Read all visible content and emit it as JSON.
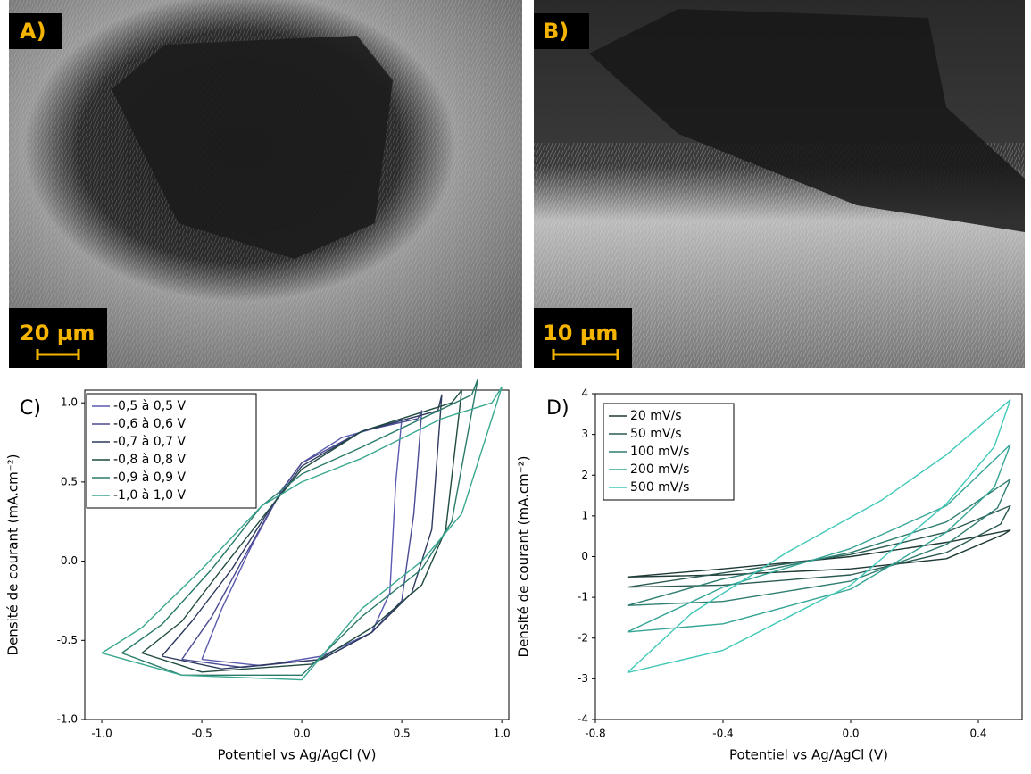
{
  "images": [
    {
      "label": "A)",
      "scale_bar": "20 µm"
    },
    {
      "label": "B)",
      "scale_bar": "10 µm"
    }
  ],
  "chart_data": [
    {
      "type": "line",
      "panel_label": "C)",
      "x_label": "Potentiel vs Ag/AgCl (V)",
      "y_label": "Densité de courant (mA.cm⁻²)",
      "xlim": [
        -1.085,
        1.035
      ],
      "ylim": [
        -1.0,
        1.08
      ],
      "xticks": [
        {
          "value": -1.0,
          "label": "-1.0"
        },
        {
          "value": -0.5,
          "label": "-0.5"
        },
        {
          "value": 0,
          "label": "0.0"
        },
        {
          "value": 0.5,
          "label": "0.5"
        },
        {
          "value": 1.0,
          "label": "1.0"
        }
      ],
      "yticks": [
        {
          "value": -1.0,
          "label": "-1.0"
        },
        {
          "value": -0.5,
          "label": "-0.5"
        },
        {
          "value": 0,
          "label": "0.0"
        },
        {
          "value": 0.5,
          "label": "0.5"
        },
        {
          "value": 1.0,
          "label": "1.0"
        }
      ],
      "series": [
        {
          "name": "-0,5 à 0,5 V",
          "color": "#5a5ab0",
          "x": [
            -0.5,
            -0.4,
            -0.25,
            -0.1,
            0,
            0.2,
            0.48,
            0.5,
            0.47,
            0.44,
            0.35,
            0.1,
            -0.2,
            -0.5
          ],
          "values": [
            -0.62,
            -0.3,
            0.1,
            0.45,
            0.62,
            0.78,
            0.88,
            0.9,
            0.5,
            -0.2,
            -0.45,
            -0.6,
            -0.66,
            -0.62
          ]
        },
        {
          "name": "-0,6 à 0,6 V",
          "color": "#4a4a92",
          "x": [
            -0.6,
            -0.45,
            -0.3,
            -0.1,
            0,
            0.3,
            0.58,
            0.6,
            0.56,
            0.5,
            0.35,
            0.1,
            -0.3,
            -0.6
          ],
          "values": [
            -0.62,
            -0.35,
            0,
            0.45,
            0.62,
            0.82,
            0.9,
            0.95,
            0.3,
            -0.25,
            -0.45,
            -0.62,
            -0.67,
            -0.62
          ]
        },
        {
          "name": "-0,7 à 0,7 V",
          "color": "#2e3a5e",
          "x": [
            -0.7,
            -0.55,
            -0.35,
            -0.15,
            0,
            0.3,
            0.68,
            0.7,
            0.65,
            0.55,
            0.35,
            0.1,
            -0.4,
            -0.7
          ],
          "values": [
            -0.6,
            -0.38,
            -0.05,
            0.35,
            0.6,
            0.82,
            0.95,
            1.05,
            0.2,
            -0.2,
            -0.45,
            -0.62,
            -0.68,
            -0.6
          ]
        },
        {
          "name": "-0,8 à 0,8 V",
          "color": "#1f4a40",
          "x": [
            -0.8,
            -0.6,
            -0.4,
            -0.15,
            0,
            0.3,
            0.75,
            0.8,
            0.72,
            0.6,
            0.35,
            0.05,
            -0.5,
            -0.8
          ],
          "values": [
            -0.58,
            -0.38,
            -0.05,
            0.35,
            0.58,
            0.82,
            1.0,
            1.08,
            0.2,
            -0.15,
            -0.42,
            -0.65,
            -0.7,
            -0.58
          ]
        },
        {
          "name": "-0,9 à 0,9 V",
          "color": "#2a7a6a",
          "x": [
            -0.9,
            -0.7,
            -0.45,
            -0.2,
            0,
            0.3,
            0.85,
            0.88,
            0.75,
            0.6,
            0.3,
            0,
            -0.6,
            -0.9
          ],
          "values": [
            -0.58,
            -0.4,
            -0.05,
            0.35,
            0.55,
            0.72,
            1.05,
            1.15,
            0.25,
            -0.05,
            -0.35,
            -0.72,
            -0.72,
            -0.58
          ]
        },
        {
          "name": "-1,0 à 1,0 V",
          "color": "#3aa890",
          "x": [
            -1.0,
            -0.8,
            -0.5,
            -0.2,
            0,
            0.3,
            0.7,
            0.95,
            1.0,
            0.8,
            0.6,
            0.3,
            0,
            -0.6,
            -1.0
          ],
          "values": [
            -0.58,
            -0.42,
            -0.05,
            0.35,
            0.5,
            0.65,
            0.9,
            1.0,
            1.1,
            0.3,
            0.0,
            -0.3,
            -0.75,
            -0.72,
            -0.58
          ]
        }
      ]
    },
    {
      "type": "line",
      "panel_label": "D)",
      "x_label": "Potentiel vs Ag/AgCl (V)",
      "y_label": "Densité de courant (mA.cm⁻²)",
      "xlim": [
        -0.8,
        0.537
      ],
      "ylim": [
        -4,
        4
      ],
      "xticks": [
        {
          "value": -0.8,
          "label": "-0.8"
        },
        {
          "value": -0.4,
          "label": "-0.4"
        },
        {
          "value": 0,
          "label": "0.0"
        },
        {
          "value": 0.4,
          "label": "0.4"
        }
      ],
      "yticks": [
        -4,
        -3,
        -2,
        -1,
        0,
        1,
        2,
        3,
        4
      ],
      "series": [
        {
          "name": "20 mV/s",
          "color": "#1e3a36",
          "x": [
            -0.7,
            -0.4,
            0,
            0.3,
            0.5,
            0.48,
            0.3,
            0,
            -0.4,
            -0.7
          ],
          "values": [
            -0.5,
            -0.3,
            0.0,
            0.35,
            0.65,
            0.55,
            -0.05,
            -0.3,
            -0.45,
            -0.5
          ]
        },
        {
          "name": "50 mV/s",
          "color": "#2a5a52",
          "x": [
            -0.7,
            -0.4,
            0,
            0.3,
            0.5,
            0.47,
            0.3,
            0,
            -0.4,
            -0.7
          ],
          "values": [
            -0.75,
            -0.4,
            0.05,
            0.6,
            1.25,
            0.8,
            0.1,
            -0.45,
            -0.7,
            -0.75
          ]
        },
        {
          "name": "100 mV/s",
          "color": "#2f7e72",
          "x": [
            -0.7,
            -0.4,
            0,
            0.3,
            0.5,
            0.46,
            0.3,
            0,
            -0.4,
            -0.7
          ],
          "values": [
            -1.2,
            -0.55,
            0.1,
            0.85,
            1.9,
            1.2,
            0.3,
            -0.6,
            -1.1,
            -1.2
          ]
        },
        {
          "name": "200 mV/s",
          "color": "#35a595",
          "x": [
            -0.7,
            -0.4,
            0,
            0.3,
            0.5,
            0.45,
            0.3,
            0,
            -0.4,
            -0.7
          ],
          "values": [
            -1.85,
            -0.75,
            0.2,
            1.25,
            2.75,
            1.7,
            0.6,
            -0.8,
            -1.65,
            -1.85
          ]
        },
        {
          "name": "500 mV/s",
          "color": "#40c8b8",
          "x": [
            -0.7,
            -0.5,
            -0.2,
            0.1,
            0.3,
            0.5,
            0.45,
            0.3,
            0,
            -0.4,
            -0.7
          ],
          "values": [
            -2.85,
            -1.4,
            0.1,
            1.4,
            2.5,
            3.85,
            2.7,
            1.3,
            -0.7,
            -2.3,
            -2.85
          ]
        }
      ]
    }
  ]
}
